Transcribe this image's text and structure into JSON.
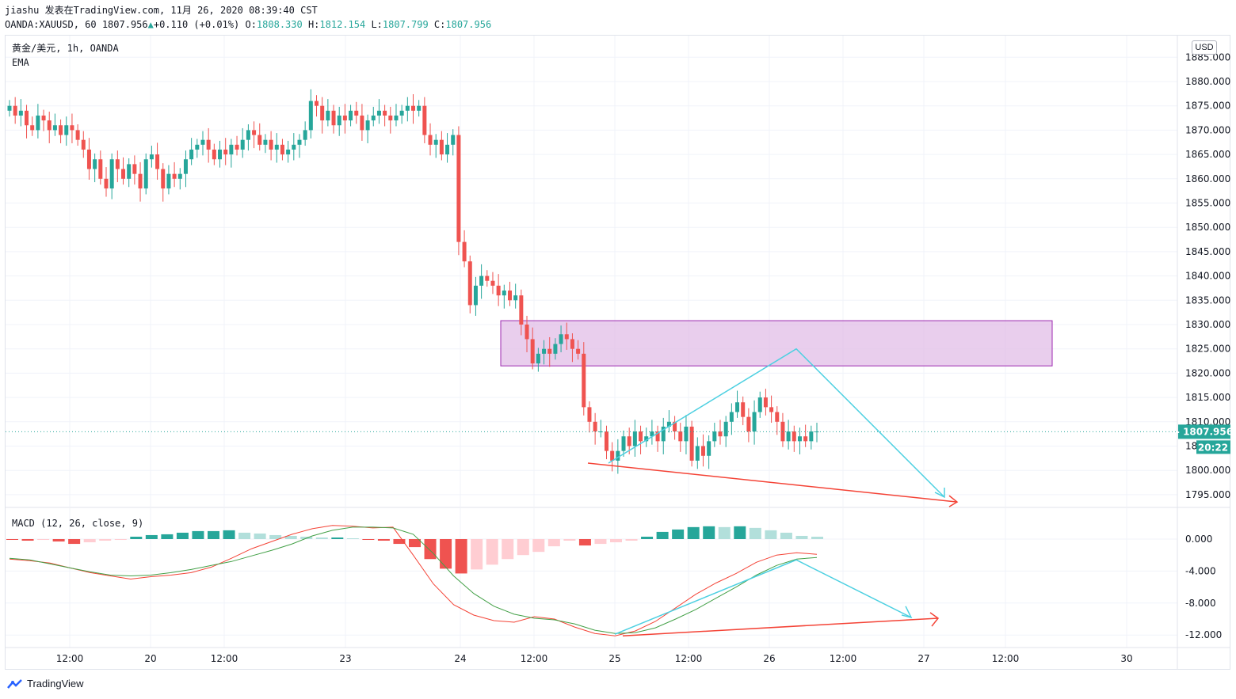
{
  "header": {
    "line1": "jiashu 发表在TradingView.com, 11月 26, 2020 08:39:40 CST",
    "symbol": "OANDA:XAUUSD, 60",
    "last": "1807.956",
    "arrow": "▲",
    "change": "+0.110 (+0.01%)",
    "o_label": "O:",
    "o_value": "1808.330",
    "h_label": "H:",
    "h_value": "1812.154",
    "l_label": "L:",
    "l_value": "1807.799",
    "c_label": "C:",
    "c_value": "1807.956"
  },
  "legend": {
    "name": "黄金/美元, 1h, OANDA",
    "indicator": "EMA",
    "macd": "MACD (12, 26, close, 9)"
  },
  "currency": "USD",
  "price_tag": "1807.956",
  "countdown": "20:22",
  "footer": {
    "brand": "TradingView"
  },
  "colors": {
    "up": "#26a69a",
    "down": "#ef5350",
    "zone": "#e1bee7",
    "cyan": "#4dd0e1",
    "red_line": "#f44336",
    "macd": "#f44336",
    "signal": "#43a047",
    "hist_up_strong": "#26a69a",
    "hist_up_weak": "#b2dfdb",
    "hist_dn_strong": "#ef5350",
    "hist_dn_weak": "#ffcdd2"
  },
  "chart_data": [
    {
      "type": "candlestick",
      "title": "",
      "yticks": [
        1885,
        1880,
        1875,
        1870,
        1865,
        1860,
        1855,
        1850,
        1845,
        1840,
        1835,
        1830,
        1825,
        1820,
        1815,
        1810,
        1805,
        1800,
        1795
      ],
      "ytick_labels": [
        "1885.000",
        "1880.000",
        "1875.000",
        "1870.000",
        "1865.000",
        "1860.000",
        "1855.000",
        "1850.000",
        "1845.000",
        "1840.000",
        "1835.000",
        "1830.000",
        "1825.000",
        "1820.000",
        "1815.000",
        "1810.000",
        "1805.000",
        "1800.000",
        "1795.000"
      ],
      "ylim": [
        1792,
        1889
      ],
      "xticks": [
        "12:00",
        "20",
        "12:00",
        "23",
        "24",
        "12:00",
        "25",
        "12:00",
        "26",
        "12:00",
        "27",
        "12:00",
        "30"
      ],
      "closes": [
        1875,
        1873,
        1874,
        1871,
        1870,
        1873,
        1872,
        1870,
        1871,
        1869,
        1871,
        1870,
        1868,
        1866,
        1862,
        1864,
        1860,
        1858,
        1864,
        1862,
        1860,
        1863,
        1861,
        1858,
        1864,
        1865,
        1862,
        1858,
        1861,
        1860,
        1861,
        1864,
        1866,
        1867,
        1868,
        1866,
        1864,
        1866,
        1865,
        1867,
        1866,
        1868,
        1870,
        1869,
        1867,
        1868,
        1866,
        1867,
        1865,
        1866,
        1867,
        1868,
        1870,
        1876,
        1875,
        1872,
        1874,
        1871,
        1873,
        1872,
        1874,
        1873,
        1870,
        1872,
        1873,
        1874,
        1873,
        1872,
        1873,
        1874,
        1875,
        1874,
        1875,
        1869,
        1867,
        1868,
        1865,
        1867,
        1869,
        1847,
        1843,
        1834,
        1838,
        1840,
        1839,
        1838,
        1836,
        1837,
        1835,
        1836,
        1830,
        1827,
        1822,
        1824,
        1825,
        1824,
        1826,
        1828,
        1827,
        1825,
        1824,
        1813,
        1810,
        1808,
        1808,
        1804,
        1802,
        1804,
        1807,
        1805,
        1808,
        1806,
        1807,
        1808,
        1806,
        1809,
        1810,
        1808,
        1806,
        1809,
        1802,
        1805,
        1803,
        1806,
        1808,
        1807,
        1810,
        1812,
        1814,
        1811,
        1808,
        1812,
        1815,
        1813,
        1812,
        1810,
        1806,
        1808,
        1806,
        1807,
        1806,
        1808,
        1808
      ],
      "opens": [
        1874,
        1875,
        1873,
        1874,
        1871,
        1870,
        1873,
        1872,
        1870,
        1871,
        1869,
        1871,
        1870,
        1868,
        1866,
        1862,
        1864,
        1860,
        1858,
        1864,
        1862,
        1860,
        1863,
        1861,
        1858,
        1864,
        1865,
        1862,
        1858,
        1861,
        1860,
        1861,
        1864,
        1866,
        1867,
        1868,
        1866,
        1864,
        1866,
        1865,
        1867,
        1866,
        1868,
        1870,
        1869,
        1867,
        1868,
        1866,
        1867,
        1865,
        1866,
        1867,
        1868,
        1870,
        1876,
        1875,
        1872,
        1874,
        1871,
        1873,
        1872,
        1874,
        1873,
        1870,
        1872,
        1873,
        1874,
        1873,
        1872,
        1873,
        1874,
        1875,
        1874,
        1875,
        1869,
        1867,
        1868,
        1865,
        1867,
        1869,
        1847,
        1843,
        1834,
        1838,
        1840,
        1839,
        1838,
        1836,
        1837,
        1835,
        1836,
        1830,
        1827,
        1822,
        1824,
        1825,
        1824,
        1826,
        1828,
        1827,
        1825,
        1824,
        1813,
        1810,
        1808,
        1808,
        1804,
        1802,
        1804,
        1807,
        1805,
        1808,
        1806,
        1807,
        1808,
        1806,
        1809,
        1810,
        1808,
        1806,
        1809,
        1802,
        1805,
        1803,
        1806,
        1808,
        1807,
        1810,
        1812,
        1814,
        1811,
        1808,
        1812,
        1815,
        1813,
        1812,
        1810,
        1806,
        1808,
        1806,
        1807,
        1806,
        1808
      ],
      "zone": {
        "from": 1821.5,
        "to": 1830.8
      },
      "last_price": 1807.956,
      "annotations": {
        "rising_wedge_peak": 1825,
        "cyan_target": 1794.5,
        "red_trend_start": 1801.5,
        "red_trend_end": 1793.5
      }
    },
    {
      "type": "bar+line",
      "title": "MACD (12, 26, close, 9)",
      "yticks": [
        0,
        -4,
        -8,
        -12
      ],
      "ytick_labels": [
        "0.000",
        "-4.000",
        "-8.000",
        "-12.000"
      ],
      "ylim": [
        -13,
        2.5
      ],
      "series": [
        {
          "name": "MACD",
          "values": [
            -2.5,
            -2.7,
            -3.0,
            -3.6,
            -4.2,
            -4.6,
            -5.0,
            -4.7,
            -4.5,
            -4.2,
            -3.5,
            -2.4,
            -1.2,
            -0.3,
            0.6,
            1.3,
            1.7,
            1.6,
            1.4,
            1.5,
            -2.0,
            -5.6,
            -8.2,
            -9.5,
            -10.2,
            -10.4,
            -9.7,
            -10.0,
            -11.0,
            -11.8,
            -12.1,
            -11.5,
            -10.3,
            -8.6,
            -6.9,
            -5.5,
            -4.3,
            -2.9,
            -2.0,
            -1.7,
            -1.9
          ]
        },
        {
          "name": "Signal",
          "values": [
            -2.4,
            -2.6,
            -3.1,
            -3.6,
            -4.1,
            -4.5,
            -4.6,
            -4.5,
            -4.2,
            -3.8,
            -3.3,
            -2.8,
            -2.1,
            -1.4,
            -0.6,
            0.4,
            1.1,
            1.5,
            1.5,
            1.4,
            0.6,
            -1.8,
            -4.6,
            -6.8,
            -8.4,
            -9.4,
            -9.9,
            -10.1,
            -10.6,
            -11.4,
            -11.8,
            -11.7,
            -11.1,
            -10.0,
            -8.8,
            -7.4,
            -6.0,
            -4.5,
            -3.3,
            -2.5,
            -2.3
          ]
        }
      ],
      "histogram": [
        -0.1,
        -0.2,
        -0.1,
        -0.3,
        -0.6,
        -0.4,
        -0.2,
        -0.1,
        0.3,
        0.5,
        0.6,
        0.8,
        1.0,
        1.0,
        1.1,
        0.8,
        0.7,
        0.5,
        0.4,
        0.3,
        0.2,
        0.2,
        0.1,
        -0.1,
        -0.2,
        -0.6,
        -1.0,
        -2.5,
        -3.7,
        -4.3,
        -3.8,
        -3.2,
        -2.5,
        -2.0,
        -1.6,
        -0.9,
        -0.2,
        -0.8,
        -0.6,
        -0.4,
        -0.2,
        0.3,
        0.9,
        1.2,
        1.5,
        1.6,
        1.5,
        1.6,
        1.4,
        1.1,
        0.8,
        0.4,
        0.3
      ]
    }
  ]
}
